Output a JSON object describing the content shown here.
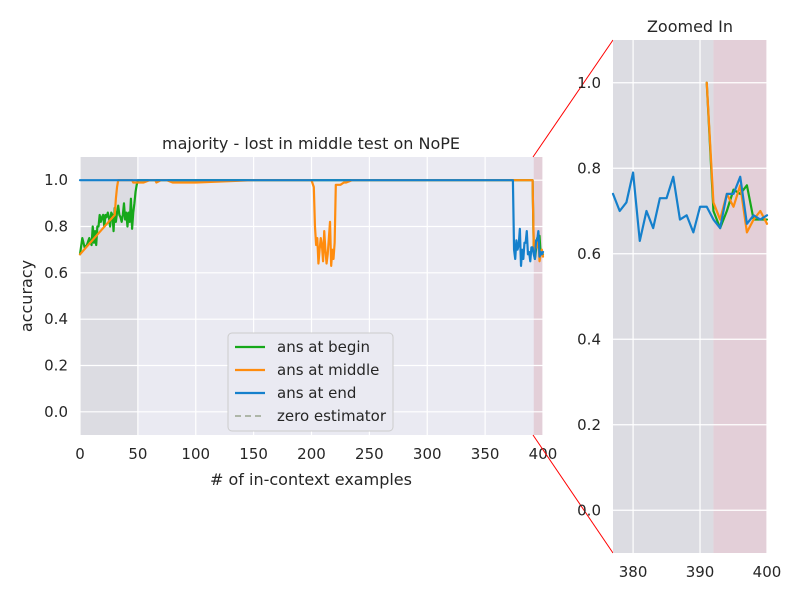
{
  "chart_data": [
    {
      "type": "line",
      "title": "majority - lost in middle test on NoPE",
      "xlabel": "# of in-context examples",
      "ylabel": "accuracy",
      "xlim": [
        0,
        400
      ],
      "ylim": [
        -0.1,
        1.1
      ],
      "xticks": [
        "0",
        "50",
        "100",
        "150",
        "200",
        "250",
        "300",
        "350",
        "400"
      ],
      "yticks": [
        "0.0",
        "0.2",
        "0.4",
        "0.6",
        "0.8",
        "1.0"
      ],
      "grid": true,
      "legend_position": "lower center",
      "shaded_regions": [
        {
          "x": [
            0,
            50
          ],
          "color": "#dcdce2"
        },
        {
          "x": [
            392,
            400
          ],
          "color": "#e3cfd8"
        }
      ],
      "series": [
        {
          "name": "ans at begin",
          "color": "#16a81a",
          "x": [
            0,
            2,
            4,
            6,
            8,
            10,
            11,
            12,
            13,
            14,
            15,
            16,
            17,
            18,
            19,
            20,
            21,
            22,
            23,
            24,
            25,
            26,
            27,
            28,
            29,
            30,
            31,
            32,
            33,
            34,
            35,
            36,
            37,
            38,
            39,
            40,
            41,
            42,
            43,
            44,
            45,
            46,
            47,
            48,
            49,
            50,
            52,
            55,
            60,
            80,
            100,
            150,
            200,
            250,
            300,
            350,
            391,
            392,
            393,
            394,
            395,
            396,
            397,
            398,
            399,
            400
          ],
          "values": [
            0.68,
            0.75,
            0.71,
            0.72,
            0.75,
            0.72,
            0.8,
            0.73,
            0.78,
            0.72,
            0.8,
            0.8,
            0.85,
            0.82,
            0.84,
            0.85,
            0.8,
            0.85,
            0.84,
            0.86,
            0.84,
            0.8,
            0.86,
            0.85,
            0.78,
            0.88,
            0.82,
            0.86,
            0.89,
            0.85,
            0.84,
            0.82,
            0.85,
            0.9,
            0.83,
            0.86,
            0.8,
            0.86,
            0.82,
            0.92,
            0.79,
            0.86,
            0.9,
            0.95,
            0.98,
            1.0,
            1.0,
            1.0,
            1.0,
            1.0,
            1.0,
            1.0,
            1.0,
            1.0,
            1.0,
            1.0,
            1.0,
            0.7,
            0.66,
            0.7,
            0.75,
            0.74,
            0.76,
            0.68,
            0.68,
            0.68
          ]
        },
        {
          "name": "ans at middle",
          "color": "#ff8c0e",
          "x": [
            0,
            30,
            31,
            32,
            33,
            35,
            40,
            45,
            46,
            48,
            50,
            55,
            60,
            65,
            66,
            70,
            75,
            80,
            100,
            150,
            200,
            202,
            203,
            204,
            205,
            206,
            207,
            208,
            209,
            210,
            211,
            212,
            213,
            214,
            215,
            216,
            217,
            218,
            219,
            220,
            221,
            222,
            225,
            228,
            230,
            235,
            250,
            300,
            350,
            391,
            392,
            393,
            394,
            395,
            396,
            397,
            398,
            399,
            400
          ],
          "values": [
            0.68,
            0.85,
            0.92,
            0.97,
            1.0,
            1.0,
            1.0,
            1.0,
            0.99,
            0.99,
            0.99,
            0.99,
            1.0,
            1.0,
            0.99,
            1.0,
            1.0,
            0.99,
            0.99,
            1.0,
            1.0,
            0.97,
            0.8,
            0.72,
            0.75,
            0.64,
            0.7,
            0.75,
            0.72,
            0.65,
            0.78,
            0.7,
            0.64,
            0.68,
            0.75,
            0.82,
            0.63,
            0.7,
            0.66,
            0.73,
            0.98,
            0.98,
            0.98,
            0.99,
            0.99,
            1.0,
            1.0,
            1.0,
            1.0,
            1.0,
            0.72,
            0.68,
            0.74,
            0.71,
            0.76,
            0.65,
            0.68,
            0.7,
            0.67
          ]
        },
        {
          "name": "ans at end",
          "color": "#1580cc",
          "x": [
            0,
            50,
            100,
            200,
            300,
            350,
            374,
            375,
            376,
            377,
            378,
            379,
            380,
            381,
            382,
            383,
            384,
            385,
            386,
            387,
            388,
            389,
            390,
            391,
            392,
            393,
            394,
            395,
            396,
            397,
            398,
            399,
            400
          ],
          "values": [
            1.0,
            1.0,
            1.0,
            1.0,
            1.0,
            1.0,
            1.0,
            0.7,
            0.66,
            0.74,
            0.7,
            0.72,
            0.79,
            0.63,
            0.7,
            0.66,
            0.73,
            0.73,
            0.78,
            0.68,
            0.69,
            0.65,
            0.71,
            0.71,
            0.68,
            0.66,
            0.74,
            0.74,
            0.78,
            0.67,
            0.69,
            0.68,
            0.69
          ]
        },
        {
          "name": "zero estimator",
          "color": "#9aa58f",
          "dashed": true,
          "x": [],
          "values": []
        }
      ]
    },
    {
      "type": "line",
      "title": "Zoomed In",
      "xlabel": "",
      "ylabel": "",
      "xlim": [
        377,
        400
      ],
      "ylim": [
        -0.1,
        1.1
      ],
      "xticks": [
        "380",
        "390",
        "400"
      ],
      "yticks": [
        "0.0",
        "0.2",
        "0.4",
        "0.6",
        "0.8",
        "1.0"
      ],
      "grid": true,
      "shaded_regions": [
        {
          "x": [
            377,
            392
          ],
          "color": "#dcdce2"
        },
        {
          "x": [
            392,
            400
          ],
          "color": "#e3cfd8"
        }
      ]
    }
  ]
}
